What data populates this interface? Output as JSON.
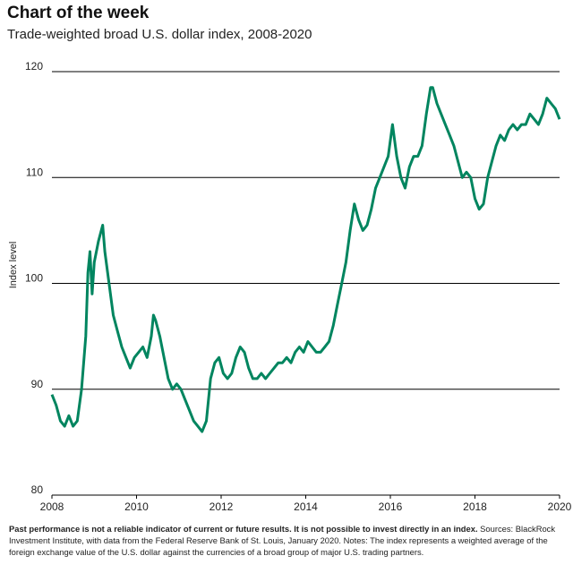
{
  "title": "Chart of the week",
  "chart_data": {
    "type": "line",
    "title": "Trade-weighted broad U.S. dollar index, 2008-2020",
    "y_label": "Index level",
    "x": [
      2008.0,
      2008.1,
      2008.2,
      2008.3,
      2008.4,
      2008.5,
      2008.6,
      2008.7,
      2008.8,
      2008.85,
      2008.9,
      2008.95,
      2009.0,
      2009.1,
      2009.2,
      2009.25,
      2009.35,
      2009.45,
      2009.55,
      2009.65,
      2009.75,
      2009.85,
      2009.95,
      2010.05,
      2010.15,
      2010.25,
      2010.35,
      2010.4,
      2010.45,
      2010.55,
      2010.65,
      2010.75,
      2010.85,
      2010.95,
      2011.05,
      2011.15,
      2011.25,
      2011.35,
      2011.45,
      2011.55,
      2011.65,
      2011.75,
      2011.85,
      2011.95,
      2012.05,
      2012.15,
      2012.25,
      2012.35,
      2012.45,
      2012.55,
      2012.65,
      2012.75,
      2012.85,
      2012.95,
      2013.05,
      2013.15,
      2013.25,
      2013.35,
      2013.45,
      2013.55,
      2013.65,
      2013.75,
      2013.85,
      2013.95,
      2014.05,
      2014.15,
      2014.25,
      2014.35,
      2014.45,
      2014.55,
      2014.65,
      2014.75,
      2014.85,
      2014.95,
      2015.05,
      2015.15,
      2015.25,
      2015.35,
      2015.45,
      2015.55,
      2015.65,
      2015.75,
      2015.85,
      2015.95,
      2016.05,
      2016.15,
      2016.25,
      2016.35,
      2016.45,
      2016.55,
      2016.65,
      2016.75,
      2016.85,
      2016.95,
      2017.0,
      2017.1,
      2017.2,
      2017.3,
      2017.4,
      2017.5,
      2017.6,
      2017.7,
      2017.8,
      2017.9,
      2018.0,
      2018.1,
      2018.2,
      2018.3,
      2018.4,
      2018.5,
      2018.6,
      2018.7,
      2018.8,
      2018.9,
      2019.0,
      2019.1,
      2019.2,
      2019.3,
      2019.4,
      2019.5,
      2019.6,
      2019.7,
      2019.8,
      2019.9,
      2020.0
    ],
    "series": [
      {
        "name": "Trade-weighted broad U.S. dollar index",
        "color": "#00855f",
        "values": [
          89.5,
          88.5,
          87,
          86.5,
          87.5,
          86.5,
          87,
          90,
          95,
          101,
          103,
          99,
          102,
          104,
          105.5,
          103,
          100,
          97,
          95.5,
          94,
          93,
          92,
          93,
          93.5,
          94,
          93,
          95,
          97,
          96.5,
          95,
          93,
          91,
          90,
          90.5,
          90,
          89,
          88,
          87,
          86.5,
          86,
          87,
          91,
          92.5,
          93,
          91.5,
          91,
          91.5,
          93,
          94,
          93.5,
          92,
          91,
          91,
          91.5,
          91,
          91.5,
          92,
          92.5,
          92.5,
          93,
          92.5,
          93.5,
          94,
          93.5,
          94.5,
          94,
          93.5,
          93.5,
          94,
          94.5,
          96,
          98,
          100,
          102,
          105,
          107.5,
          106,
          105,
          105.5,
          107,
          109,
          110,
          111,
          112,
          115,
          112,
          110,
          109,
          111,
          112,
          112,
          113,
          116,
          118.5,
          118.5,
          117,
          116,
          115,
          114,
          113,
          111.5,
          110,
          110.5,
          110,
          108,
          107,
          107.5,
          110,
          111.5,
          113,
          114,
          113.5,
          114.5,
          115,
          114.5,
          115,
          115,
          116,
          115.5,
          115,
          116,
          117.5,
          117,
          116.5,
          115.5
        ]
      }
    ],
    "xlim": [
      2008,
      2020
    ],
    "xticks": [
      2008,
      2010,
      2012,
      2014,
      2016,
      2018,
      2020
    ],
    "ylim": [
      80,
      120
    ],
    "yticks": [
      80,
      90,
      100,
      110,
      120
    ],
    "grid": true
  },
  "footnote": {
    "bold": "Past performance is not a reliable indicator of current or future results. It is not possible to invest directly in an index.",
    "text": " Sources: BlackRock Investment Institute, with data from the Federal Reserve Bank of St. Louis, January 2020. Notes: The index represents a weighted average of the foreign exchange value of the U.S. dollar against the currencies of a broad group of major U.S. trading partners."
  }
}
